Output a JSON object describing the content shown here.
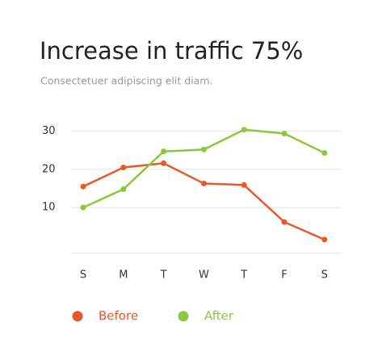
{
  "chart_data": {
    "type": "line",
    "title": "Increase in traffic 75%",
    "subtitle": "Consectetuer adipiscing elit diam.",
    "categories": [
      "S",
      "M",
      "T",
      "W",
      "T",
      "F",
      "S"
    ],
    "series": [
      {
        "name": "Before",
        "color": "#e8582a",
        "values": [
          15.5,
          20.5,
          21.6,
          16.3,
          15.9,
          6.2,
          1.6
        ]
      },
      {
        "name": "After",
        "color": "#8dc63f",
        "values": [
          10,
          14.8,
          24.7,
          25.2,
          30.4,
          29.4,
          24.3
        ]
      }
    ],
    "ylim": [
      -2,
      35
    ],
    "yticks": [
      10,
      20,
      30
    ],
    "grid": true
  }
}
